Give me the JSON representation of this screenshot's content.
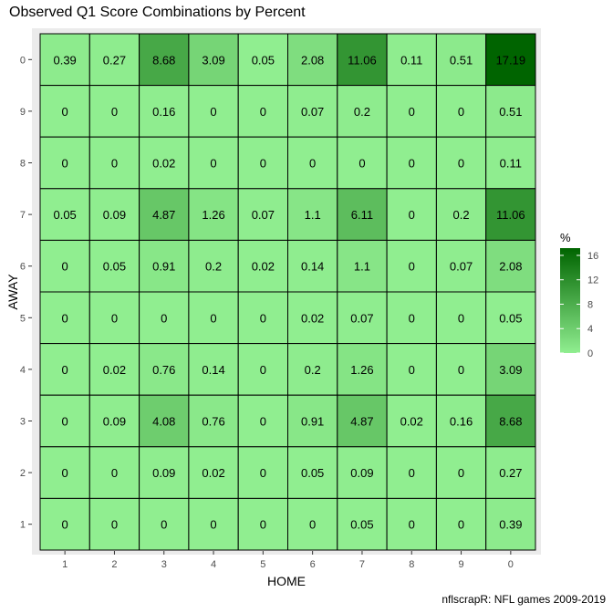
{
  "chart_data": {
    "type": "heatmap",
    "title": "Observed Q1 Score Combinations by Percent",
    "xlabel": "HOME",
    "ylabel": "AWAY",
    "x_categories": [
      "1",
      "2",
      "3",
      "4",
      "5",
      "6",
      "7",
      "8",
      "9",
      "0"
    ],
    "y_categories": [
      "0",
      "9",
      "8",
      "7",
      "6",
      "5",
      "4",
      "3",
      "2",
      "1"
    ],
    "values": [
      [
        0.39,
        0.27,
        8.68,
        3.09,
        0.05,
        2.08,
        11.06,
        0.11,
        0.51,
        17.19
      ],
      [
        0,
        0,
        0.16,
        0,
        0,
        0.07,
        0.2,
        0,
        0,
        0.51
      ],
      [
        0,
        0,
        0.02,
        0,
        0,
        0,
        0,
        0,
        0,
        0.11
      ],
      [
        0.05,
        0.09,
        4.87,
        1.26,
        0.07,
        1.1,
        6.11,
        0,
        0.2,
        11.06
      ],
      [
        0,
        0.05,
        0.91,
        0.2,
        0.02,
        0.14,
        1.1,
        0,
        0.07,
        2.08
      ],
      [
        0,
        0,
        0,
        0,
        0,
        0.02,
        0.07,
        0,
        0,
        0.05
      ],
      [
        0,
        0.02,
        0.76,
        0.14,
        0,
        0.2,
        1.26,
        0,
        0,
        3.09
      ],
      [
        0,
        0.09,
        4.08,
        0.76,
        0,
        0.91,
        4.87,
        0.02,
        0.16,
        8.68
      ],
      [
        0,
        0,
        0.09,
        0.02,
        0,
        0.05,
        0.09,
        0,
        0,
        0.27
      ],
      [
        0,
        0,
        0,
        0,
        0,
        0,
        0.05,
        0,
        0,
        0.39
      ]
    ],
    "legend": {
      "title": "%",
      "ticks": [
        0,
        4,
        8,
        12,
        16
      ],
      "range": [
        0,
        17.19
      ],
      "low_color": "#90ee90",
      "high_color": "#006400",
      "placement": "right"
    },
    "grid": true,
    "panel_background": "#ebebeb"
  },
  "caption": "nflscrapR: NFL games 2009-2019"
}
